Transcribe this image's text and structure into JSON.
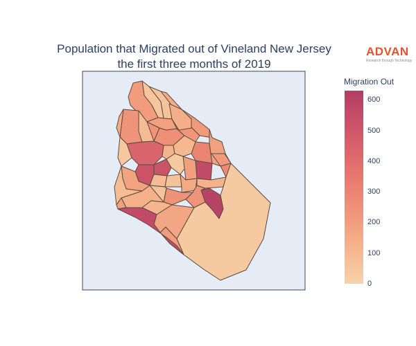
{
  "title": {
    "line1": "Population that Migrated out of Vineland New Jersey",
    "line2": "the first three months of 2019"
  },
  "logo": {
    "word": "ADVAN",
    "tagline": "Research through Technology"
  },
  "colorbar": {
    "title": "Migration Out",
    "min": 0,
    "max": 630,
    "ticks": [
      "0",
      "100",
      "200",
      "300",
      "400",
      "500",
      "600"
    ],
    "colorscale": [
      "#f6d2a9",
      "#f5b78e",
      "#f19c7c",
      "#ea8171",
      "#dd686c",
      "#ca5268",
      "#b13f64"
    ]
  },
  "colors": {
    "map_background": "#e5ecf6",
    "boundary": "#5a4a3f",
    "text": "#2a3f5f"
  },
  "chart_data": {
    "type": "choropleth",
    "value_label": "Migration Out",
    "range": [
      0,
      630
    ],
    "regions": [
      {
        "value": 50
      },
      {
        "value": 60
      },
      {
        "value": 210
      },
      {
        "value": 240
      },
      {
        "value": 150
      },
      {
        "value": 220
      },
      {
        "value": 190
      },
      {
        "value": 260
      },
      {
        "value": 230
      },
      {
        "value": 440
      },
      {
        "value": 520
      },
      {
        "value": 180
      },
      {
        "value": 120
      },
      {
        "value": 520
      },
      {
        "value": 90
      },
      {
        "value": 60
      },
      {
        "value": 100
      },
      {
        "value": 560
      },
      {
        "value": 200
      },
      {
        "value": 150
      },
      {
        "value": 300
      },
      {
        "value": 190
      },
      {
        "value": 280
      },
      {
        "value": 120
      },
      {
        "value": 30
      },
      {
        "value": 600
      },
      {
        "value": 240
      },
      {
        "value": 250
      },
      {
        "value": 30
      },
      {
        "value": 210
      },
      {
        "value": 170
      },
      {
        "value": 110
      },
      {
        "value": 130
      },
      {
        "value": 80
      },
      {
        "value": 200
      },
      {
        "value": 60
      },
      {
        "value": 40
      },
      {
        "value": 150
      },
      {
        "value": 220
      },
      {
        "value": 560
      },
      {
        "value": 140
      },
      {
        "value": 90
      }
    ]
  }
}
